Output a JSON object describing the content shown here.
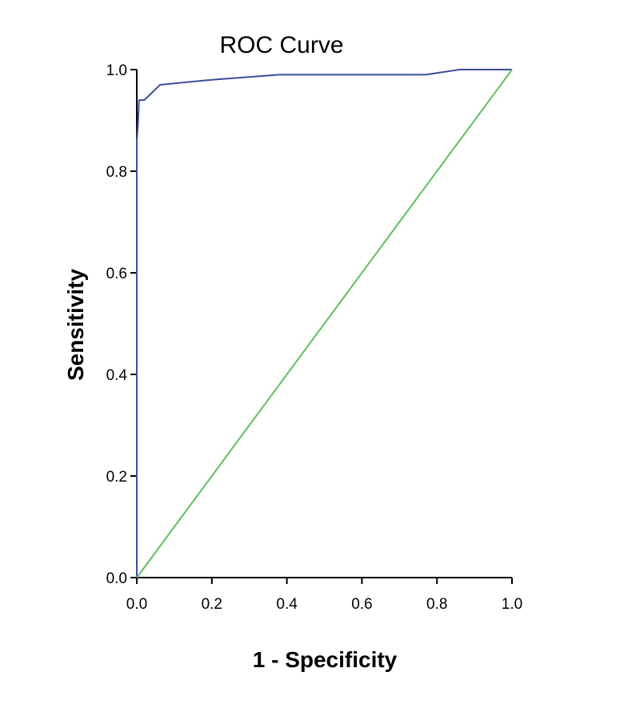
{
  "chart_data": {
    "type": "line",
    "title": "ROC Curve",
    "xlabel": "1 - Specificity",
    "ylabel": "Sensitivity",
    "xlim": [
      0.0,
      1.0
    ],
    "ylim": [
      0.0,
      1.0
    ],
    "x_ticks": [
      "0.0",
      "0.2",
      "0.4",
      "0.6",
      "0.8",
      "1.0"
    ],
    "y_ticks": [
      "0.0",
      "0.2",
      "0.4",
      "0.6",
      "0.8",
      "1.0"
    ],
    "grid": false,
    "legend": "none",
    "series": [
      {
        "color": "#3a4f9b",
        "x": [
          0.0,
          0.0,
          0.0,
          0.003,
          0.006,
          0.02,
          0.062,
          0.2,
          0.38,
          0.77,
          0.86,
          1.0
        ],
        "y": [
          0.0,
          0.5,
          0.86,
          0.89,
          0.94,
          0.94,
          0.97,
          0.98,
          0.99,
          0.99,
          1.0,
          1.0
        ]
      },
      {
        "color": "#5cc15c",
        "x": [
          0.0,
          1.0
        ],
        "y": [
          0.0,
          1.0
        ]
      }
    ]
  }
}
